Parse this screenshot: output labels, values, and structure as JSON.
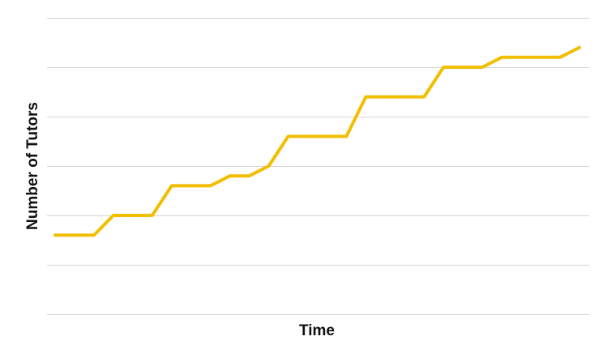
{
  "chart_data": {
    "type": "line",
    "xlabel": "Time",
    "ylabel": "Number of Tutors",
    "x": [
      0,
      1,
      2,
      3,
      4,
      5,
      6,
      7,
      8,
      9,
      10,
      11,
      12,
      13,
      14,
      15,
      16,
      17,
      18,
      19,
      20,
      21,
      22,
      23,
      24,
      25,
      26,
      27
    ],
    "series": [
      {
        "values": [
          1.6,
          1.6,
          1.6,
          2.0,
          2.0,
          2.0,
          2.6,
          2.6,
          2.6,
          2.8,
          2.8,
          3.0,
          3.6,
          3.6,
          3.6,
          3.6,
          4.4,
          4.4,
          4.4,
          4.4,
          5.0,
          5.0,
          5.0,
          5.2,
          5.2,
          5.2,
          5.2,
          5.4
        ],
        "color": "#F2BE00"
      }
    ],
    "xlim": [
      0,
      27
    ],
    "ylim": [
      0,
      6
    ],
    "grid": true,
    "gridlines": 7,
    "show_tick_labels": false,
    "legend": "none",
    "gridline_color": "#d4d4d4"
  }
}
